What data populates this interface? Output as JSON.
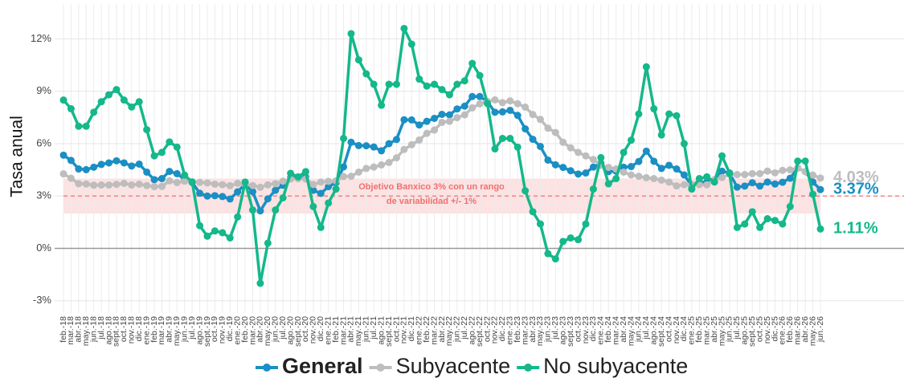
{
  "chart_data": {
    "type": "line",
    "y_label": "Tasa anual",
    "categories": [
      "feb.-18",
      "mar.-18",
      "abr.-18",
      "may.-18",
      "jun.-18",
      "jul.-18",
      "ago.-18",
      "sept.-18",
      "oct.-18",
      "nov.-18",
      "dic.-18",
      "ene.-19",
      "feb.-19",
      "mar.-19",
      "abr.-19",
      "may.-19",
      "jun.-19",
      "jul.-19",
      "ago.-19",
      "sept.-19",
      "oct.-19",
      "nov.-19",
      "dic.-19",
      "ene.-20",
      "feb.-20",
      "mar.-20",
      "abr.-20",
      "may.-20",
      "jun.-20",
      "jul.-20",
      "ago.-20",
      "sept.-20",
      "oct.-20",
      "nov.-20",
      "dic.-20",
      "ene.-21",
      "feb.-21",
      "mar.-21",
      "abr.-21",
      "may.-21",
      "jun.-21",
      "jul.-21",
      "ago.-21",
      "sept.-21",
      "oct.-21",
      "nov.-21",
      "dic.-21",
      "ene.-22",
      "feb.-22",
      "mar.-22",
      "abr.-22",
      "may.-22",
      "jun.-22",
      "jul.-22",
      "ago.-22",
      "sept.-22",
      "oct.-22",
      "nov.-22",
      "dic.-22",
      "ene.-23",
      "feb.-23",
      "mar.-23",
      "abr.-23",
      "may.-23",
      "jun.-23",
      "jul.-23",
      "ago.-23",
      "sept.-23",
      "oct.-23",
      "nov.-23",
      "dic.-23",
      "ene.-24",
      "feb.-24",
      "mar.-24",
      "abr.-24",
      "may.-24",
      "jun.-24",
      "jul.-24",
      "ago.-24",
      "sept.-24",
      "oct.-24",
      "nov.-24",
      "dic.-24",
      "ene.-25",
      "feb.-25",
      "mar.-25",
      "abr.-25",
      "may.-25",
      "jun.-25",
      "jul.-25",
      "ago.-25",
      "sept.-25",
      "oct.-25",
      "nov.-25",
      "dic.-25",
      "ene.-26",
      "feb.-26",
      "mar.-26",
      "abr.-26",
      "may.-26",
      "jun.-26"
    ],
    "series": [
      {
        "name": "General",
        "color": "#1a8fc4",
        "values": [
          5.34,
          5.04,
          4.55,
          4.51,
          4.65,
          4.81,
          4.9,
          5.02,
          4.9,
          4.72,
          4.83,
          4.37,
          3.94,
          4.0,
          4.41,
          4.28,
          3.95,
          3.78,
          3.16,
          3.0,
          3.02,
          2.97,
          2.83,
          3.24,
          3.7,
          3.25,
          2.15,
          2.84,
          3.33,
          3.62,
          4.05,
          4.01,
          4.09,
          3.33,
          3.15,
          3.54,
          3.76,
          4.67,
          6.08,
          5.89,
          5.88,
          5.81,
          5.59,
          6.0,
          6.24,
          7.37,
          7.36,
          7.07,
          7.28,
          7.45,
          7.68,
          7.65,
          7.99,
          8.15,
          8.7,
          8.7,
          8.41,
          7.8,
          7.82,
          7.91,
          7.62,
          6.85,
          6.25,
          5.84,
          5.06,
          4.79,
          4.64,
          4.45,
          4.26,
          4.32,
          4.66,
          4.88,
          4.4,
          4.42,
          4.65,
          4.69,
          4.98,
          5.57,
          4.99,
          4.58,
          4.76,
          4.55,
          4.21,
          3.59,
          3.77,
          3.8,
          3.93,
          4.42,
          4.32,
          3.51,
          3.57,
          3.76,
          3.57,
          3.8,
          3.69,
          3.79,
          4.02,
          4.6,
          4.4,
          3.8,
          3.37
        ],
        "value_labels": [
          null,
          null,
          null,
          null,
          null,
          null,
          null,
          null,
          null,
          null,
          null,
          null,
          null,
          null,
          null,
          null,
          null,
          null,
          null,
          null,
          null,
          null,
          null,
          null,
          null,
          null,
          null,
          null,
          null,
          null,
          null,
          null,
          null,
          null,
          null,
          null,
          null,
          null,
          null,
          null,
          null,
          null,
          null,
          null,
          null,
          null,
          null,
          null,
          null,
          null,
          null,
          null,
          null,
          null,
          null,
          null,
          null,
          null,
          null,
          null,
          null,
          null,
          null,
          null,
          null,
          null,
          null,
          null,
          null,
          null,
          null,
          null,
          null,
          null,
          null,
          null,
          null,
          null,
          null,
          null,
          null,
          null,
          null,
          null,
          null,
          null,
          null,
          null,
          null,
          null,
          null,
          null,
          null,
          null,
          null,
          null,
          null,
          null,
          null,
          null,
          "3.37%"
        ]
      },
      {
        "name": "Subyacente",
        "color": "#bdbdbd",
        "values": [
          4.27,
          4.02,
          3.71,
          3.69,
          3.62,
          3.63,
          3.63,
          3.67,
          3.73,
          3.63,
          3.68,
          3.6,
          3.54,
          3.55,
          3.87,
          3.77,
          3.85,
          3.82,
          3.78,
          3.75,
          3.68,
          3.65,
          3.59,
          3.73,
          3.66,
          3.6,
          3.5,
          3.64,
          3.71,
          3.85,
          3.97,
          3.99,
          3.98,
          3.66,
          3.8,
          3.84,
          3.87,
          4.12,
          4.13,
          4.37,
          4.58,
          4.66,
          4.78,
          4.92,
          5.19,
          5.67,
          5.94,
          6.21,
          6.59,
          6.78,
          7.22,
          7.28,
          7.49,
          7.65,
          8.05,
          8.28,
          8.42,
          8.51,
          8.35,
          8.45,
          8.29,
          8.09,
          7.67,
          7.39,
          6.89,
          6.64,
          6.08,
          5.76,
          5.5,
          5.3,
          5.09,
          4.76,
          4.64,
          4.55,
          4.37,
          4.21,
          4.13,
          4.05,
          4.0,
          3.91,
          3.8,
          3.58,
          3.65,
          3.66,
          3.65,
          3.64,
          3.93,
          4.06,
          4.24,
          4.23,
          4.23,
          4.28,
          4.28,
          4.43,
          4.33,
          4.47,
          4.5,
          4.6,
          4.4,
          4.2,
          4.03
        ],
        "value_labels": [
          null,
          null,
          null,
          null,
          null,
          null,
          null,
          null,
          null,
          null,
          null,
          null,
          null,
          null,
          null,
          null,
          null,
          null,
          null,
          null,
          null,
          null,
          null,
          null,
          null,
          null,
          null,
          null,
          null,
          null,
          null,
          null,
          null,
          null,
          null,
          null,
          null,
          null,
          null,
          null,
          null,
          null,
          null,
          null,
          null,
          null,
          null,
          null,
          null,
          null,
          null,
          null,
          null,
          null,
          null,
          null,
          null,
          null,
          null,
          null,
          null,
          null,
          null,
          null,
          null,
          null,
          null,
          null,
          null,
          null,
          null,
          null,
          null,
          null,
          null,
          null,
          null,
          null,
          null,
          null,
          null,
          null,
          null,
          null,
          null,
          null,
          null,
          null,
          null,
          null,
          null,
          null,
          null,
          null,
          null,
          null,
          null,
          null,
          null,
          null,
          "4.03%"
        ]
      },
      {
        "name": "No subyacente",
        "color": "#14b88a",
        "values": [
          8.5,
          8.0,
          7.0,
          7.0,
          7.8,
          8.4,
          8.8,
          9.1,
          8.5,
          8.1,
          8.4,
          6.8,
          5.3,
          5.5,
          6.1,
          5.8,
          4.2,
          3.8,
          1.3,
          0.7,
          1.0,
          0.9,
          0.6,
          1.8,
          3.8,
          2.2,
          -2.0,
          0.3,
          2.2,
          2.9,
          4.3,
          4.1,
          4.4,
          2.4,
          1.2,
          2.6,
          3.4,
          6.3,
          12.3,
          10.8,
          10.0,
          9.4,
          8.2,
          9.4,
          9.4,
          12.6,
          11.7,
          9.7,
          9.3,
          9.4,
          9.1,
          8.8,
          9.4,
          9.6,
          10.6,
          9.9,
          8.3,
          5.7,
          6.3,
          6.3,
          5.8,
          3.3,
          2.1,
          1.4,
          -0.3,
          -0.6,
          0.4,
          0.6,
          0.5,
          1.4,
          3.4,
          5.2,
          3.7,
          4.0,
          5.5,
          6.2,
          7.7,
          10.4,
          8.0,
          6.5,
          7.7,
          7.6,
          6.0,
          3.4,
          4.0,
          4.1,
          3.8,
          5.3,
          4.3,
          1.2,
          1.4,
          2.1,
          1.2,
          1.7,
          1.6,
          1.4,
          2.4,
          5.0,
          5.0,
          3.1,
          1.11
        ],
        "value_labels": [
          null,
          null,
          null,
          null,
          null,
          null,
          null,
          null,
          null,
          null,
          null,
          null,
          null,
          null,
          null,
          null,
          null,
          null,
          null,
          null,
          null,
          null,
          null,
          null,
          null,
          null,
          null,
          null,
          null,
          null,
          null,
          null,
          null,
          null,
          null,
          null,
          null,
          null,
          null,
          null,
          null,
          null,
          null,
          null,
          null,
          null,
          null,
          null,
          null,
          null,
          null,
          null,
          null,
          null,
          null,
          null,
          null,
          null,
          null,
          null,
          null,
          null,
          null,
          null,
          null,
          null,
          null,
          null,
          null,
          null,
          null,
          null,
          null,
          null,
          null,
          null,
          null,
          null,
          null,
          null,
          null,
          null,
          null,
          null,
          null,
          null,
          null,
          null,
          null,
          null,
          null,
          null,
          null,
          null,
          null,
          null,
          null,
          null,
          null,
          null,
          "1.11%"
        ]
      }
    ],
    "target": 3,
    "target_band": [
      2,
      4
    ],
    "target_color": "#f07070",
    "annotation": [
      "Objetivo Banxico 3% con un rango",
      "de variabilidad +/- 1%"
    ],
    "ylim": [
      -3.7,
      14
    ],
    "yticks": [
      {
        "value": -3,
        "label": "-3%"
      },
      {
        "value": 0,
        "label": "0%"
      },
      {
        "value": 3,
        "label": "3%"
      },
      {
        "value": 6,
        "label": "6%"
      },
      {
        "value": 9,
        "label": "9%"
      },
      {
        "value": 12,
        "label": "12%"
      }
    ],
    "grid": true,
    "legend": "bottom"
  }
}
